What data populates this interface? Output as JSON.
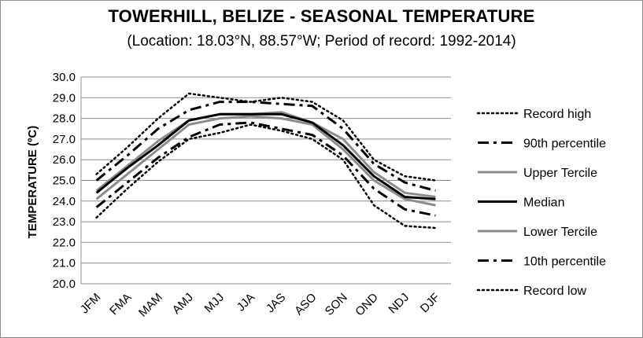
{
  "chart_data": {
    "type": "line",
    "title": "TOWERHILL, BELIZE - SEASONAL TEMPERATURE",
    "subtitle": "(Location: 18.03°N, 88.57°W; Period of record: 1992-2014)",
    "xlabel": "",
    "ylabel": "TEMPERATURE (ºC)",
    "ylim": [
      20.0,
      30.0
    ],
    "ytick_step": 1.0,
    "grid": true,
    "legend_position": "right",
    "categories": [
      "JFM",
      "FMA",
      "MAM",
      "AMJ",
      "MJJ",
      "JJA",
      "JAS",
      "ASO",
      "SON",
      "OND",
      "NDJ",
      "DJF"
    ],
    "series": [
      {
        "name": "Record high",
        "style": "dotted",
        "color": "#000000",
        "values": [
          25.3,
          26.6,
          28.0,
          29.2,
          29.0,
          28.8,
          29.0,
          28.8,
          27.9,
          26.0,
          25.2,
          25.0
        ]
      },
      {
        "name": "90th percentile",
        "style": "dashdot",
        "color": "#000000",
        "values": [
          25.0,
          26.2,
          27.5,
          28.4,
          28.8,
          28.8,
          28.7,
          28.6,
          27.5,
          25.8,
          24.9,
          24.5
        ]
      },
      {
        "name": "Upper Tercile",
        "style": "solid",
        "color": "#8c8c8c",
        "values": [
          24.5,
          25.7,
          26.9,
          27.9,
          28.2,
          28.2,
          28.3,
          27.8,
          27.0,
          25.4,
          24.4,
          24.2
        ]
      },
      {
        "name": "Median",
        "style": "solid",
        "color": "#000000",
        "values": [
          24.4,
          25.6,
          26.7,
          27.9,
          28.2,
          28.2,
          28.2,
          27.8,
          26.7,
          25.2,
          24.2,
          24.1
        ]
      },
      {
        "name": "Lower Tercile",
        "style": "solid",
        "color": "#8c8c8c",
        "values": [
          24.1,
          25.3,
          26.5,
          27.7,
          28.0,
          28.1,
          28.0,
          27.7,
          26.5,
          25.0,
          24.1,
          23.8
        ]
      },
      {
        "name": "10th percentile",
        "style": "dashdot",
        "color": "#000000",
        "values": [
          23.7,
          24.9,
          26.1,
          27.1,
          27.7,
          27.8,
          27.5,
          27.2,
          26.2,
          24.6,
          23.6,
          23.3
        ]
      },
      {
        "name": "Record low",
        "style": "dotted",
        "color": "#000000",
        "values": [
          23.2,
          24.6,
          25.9,
          27.0,
          27.3,
          27.7,
          27.4,
          27.0,
          26.0,
          23.8,
          22.8,
          22.7
        ]
      }
    ]
  }
}
